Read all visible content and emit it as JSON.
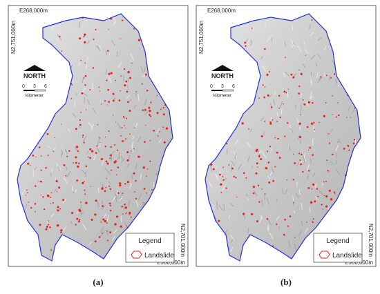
{
  "panels": [
    {
      "caption": "(a)",
      "top_easting": "E268,000m",
      "top_northing": "N2,751,000m",
      "bottom_northing": "N2,701,000m",
      "bottom_easting": "E300,000m",
      "north_arrow": "NORTH",
      "scale_ticks": [
        "0",
        "3",
        "6"
      ],
      "scale_unit": "kilometer",
      "legend": {
        "title": "Legend",
        "items": [
          "Landslide"
        ]
      }
    },
    {
      "caption": "(b)",
      "top_easting": "E268,000m",
      "top_northing": "N2,751,000m",
      "bottom_northing": "N2,701,000m",
      "bottom_easting": "E300,000m",
      "north_arrow": "NORTH",
      "scale_ticks": [
        "0",
        "3",
        "6"
      ],
      "scale_unit": "kilometer",
      "legend": {
        "title": "Legend",
        "items": [
          "Landslide"
        ]
      }
    }
  ]
}
